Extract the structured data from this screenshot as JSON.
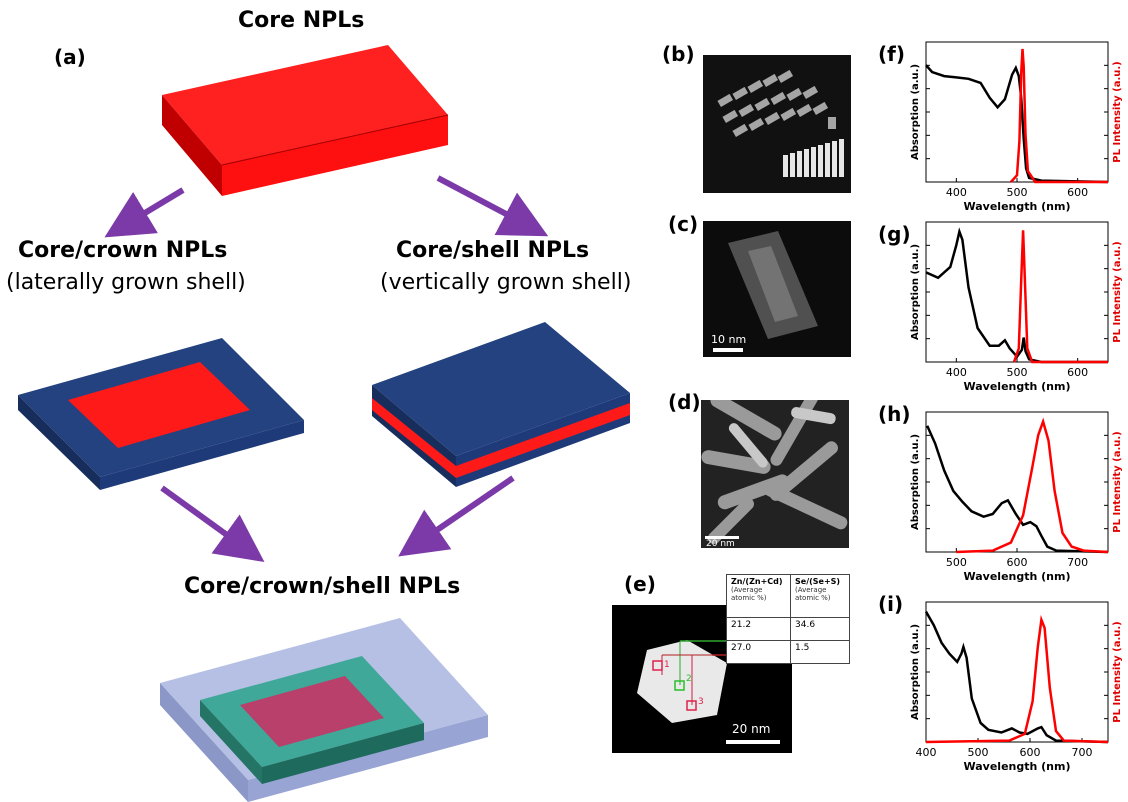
{
  "labels": {
    "a": "(a)",
    "b": "(b)",
    "c": "(c)",
    "d": "(d)",
    "e": "(e)",
    "f": "(f)",
    "g": "(g)",
    "h": "(h)",
    "i": "(i)"
  },
  "diagram": {
    "core_title": "Core NPLs",
    "crown_title": "Core/crown NPLs",
    "crown_sub": "(laterally grown shell)",
    "shell_title": "Core/shell NPLs",
    "shell_sub": "(vertically grown shell)",
    "ccs_title": "Core/crown/shell NPLs",
    "colors": {
      "core": "#ff1a1a",
      "shell": "#1f3a78",
      "arrow": "#7b3aa8"
    }
  },
  "tem": {
    "c_scale": "10 nm",
    "d_scale": "20 nm",
    "e_scale": "20 nm",
    "e_points": [
      "1",
      "2",
      "3"
    ]
  },
  "table": {
    "header": [
      {
        "title": "Zn/(Zn+Cd)",
        "sub": "(Average atomic %)"
      },
      {
        "title": "Se/(Se+S)",
        "sub": "(Average atomic %)"
      }
    ],
    "rows": [
      [
        "21.2",
        "34.6"
      ],
      [
        "27.0",
        "1.5"
      ]
    ]
  },
  "chart_data": [
    {
      "type": "line",
      "panel": "f",
      "xlabel": "Wavelength (nm)",
      "ylabel_left": "Absorption (a.u.)",
      "ylabel_right": "PL Intensity (a.u.)",
      "xlim": [
        350,
        650
      ],
      "xticks": [
        400,
        500,
        600
      ],
      "series": [
        {
          "color": "#000000",
          "points": [
            [
              350,
              0.86
            ],
            [
              360,
              0.81
            ],
            [
              380,
              0.78
            ],
            [
              400,
              0.77
            ],
            [
              420,
              0.76
            ],
            [
              440,
              0.73
            ],
            [
              455,
              0.62
            ],
            [
              468,
              0.55
            ],
            [
              480,
              0.61
            ],
            [
              492,
              0.79
            ],
            [
              498,
              0.84
            ],
            [
              503,
              0.78
            ],
            [
              507,
              0.62
            ],
            [
              511,
              0.32
            ],
            [
              515,
              0.1
            ],
            [
              520,
              0.03
            ],
            [
              540,
              0.01
            ],
            [
              650,
              0.0
            ]
          ]
        },
        {
          "color": "#ff0000",
          "points": [
            [
              490,
              0.0
            ],
            [
              500,
              0.05
            ],
            [
              504,
              0.3
            ],
            [
              507,
              0.8
            ],
            [
              509,
              0.98
            ],
            [
              511,
              0.85
            ],
            [
              514,
              0.35
            ],
            [
              518,
              0.08
            ],
            [
              530,
              0.0
            ],
            [
              650,
              0.0
            ]
          ]
        }
      ]
    },
    {
      "type": "line",
      "panel": "g",
      "xlabel": "Wavelength (nm)",
      "ylabel_left": "Absorption (a.u.)",
      "ylabel_right": "PL Intensity (a.u.)",
      "xlim": [
        350,
        650
      ],
      "xticks": [
        400,
        500,
        600
      ],
      "series": [
        {
          "color": "#000000",
          "points": [
            [
              350,
              0.66
            ],
            [
              370,
              0.62
            ],
            [
              390,
              0.7
            ],
            [
              400,
              0.86
            ],
            [
              405,
              0.96
            ],
            [
              410,
              0.9
            ],
            [
              420,
              0.55
            ],
            [
              435,
              0.25
            ],
            [
              455,
              0.12
            ],
            [
              470,
              0.12
            ],
            [
              480,
              0.16
            ],
            [
              488,
              0.1
            ],
            [
              500,
              0.04
            ],
            [
              508,
              0.09
            ],
            [
              511,
              0.18
            ],
            [
              514,
              0.08
            ],
            [
              520,
              0.02
            ],
            [
              540,
              0.0
            ],
            [
              650,
              0.0
            ]
          ]
        },
        {
          "color": "#ff0000",
          "points": [
            [
              495,
              0.0
            ],
            [
              503,
              0.1
            ],
            [
              507,
              0.6
            ],
            [
              510,
              0.97
            ],
            [
              513,
              0.6
            ],
            [
              517,
              0.1
            ],
            [
              525,
              0.0
            ],
            [
              650,
              0.0
            ]
          ]
        }
      ]
    },
    {
      "type": "line",
      "panel": "h",
      "xlabel": "Wavelength (nm)",
      "ylabel_left": "Absorption (a.u.)",
      "ylabel_right": "PL Intensity (a.u.)",
      "xlim": [
        450,
        750
      ],
      "xticks": [
        500,
        600,
        700
      ],
      "series": [
        {
          "color": "#000000",
          "points": [
            [
              452,
              0.93
            ],
            [
              465,
              0.8
            ],
            [
              480,
              0.6
            ],
            [
              495,
              0.45
            ],
            [
              510,
              0.37
            ],
            [
              525,
              0.3
            ],
            [
              545,
              0.26
            ],
            [
              560,
              0.28
            ],
            [
              575,
              0.36
            ],
            [
              585,
              0.38
            ],
            [
              598,
              0.28
            ],
            [
              610,
              0.2
            ],
            [
              622,
              0.22
            ],
            [
              632,
              0.19
            ],
            [
              640,
              0.12
            ],
            [
              650,
              0.04
            ],
            [
              665,
              0.01
            ],
            [
              750,
              0.0
            ]
          ]
        },
        {
          "color": "#ff0000",
          "points": [
            [
              500,
              0.0
            ],
            [
              560,
              0.01
            ],
            [
              590,
              0.07
            ],
            [
              610,
              0.27
            ],
            [
              625,
              0.62
            ],
            [
              635,
              0.86
            ],
            [
              643,
              0.96
            ],
            [
              652,
              0.82
            ],
            [
              662,
              0.45
            ],
            [
              675,
              0.14
            ],
            [
              690,
              0.04
            ],
            [
              710,
              0.01
            ],
            [
              750,
              0.0
            ]
          ]
        }
      ]
    },
    {
      "type": "line",
      "panel": "i",
      "xlabel": "Wavelength (nm)",
      "ylabel_left": "Absorption (a.u.)",
      "ylabel_right": "PL Intensity (a.u.)",
      "xlim": [
        400,
        750
      ],
      "xticks": [
        400,
        500,
        600,
        700
      ],
      "series": [
        {
          "color": "#000000",
          "points": [
            [
              400,
              0.96
            ],
            [
              415,
              0.86
            ],
            [
              430,
              0.73
            ],
            [
              445,
              0.65
            ],
            [
              460,
              0.59
            ],
            [
              468,
              0.65
            ],
            [
              472,
              0.7
            ],
            [
              478,
              0.62
            ],
            [
              488,
              0.32
            ],
            [
              505,
              0.14
            ],
            [
              520,
              0.09
            ],
            [
              545,
              0.07
            ],
            [
              565,
              0.1
            ],
            [
              580,
              0.07
            ],
            [
              595,
              0.06
            ],
            [
              615,
              0.1
            ],
            [
              622,
              0.11
            ],
            [
              632,
              0.05
            ],
            [
              650,
              0.01
            ],
            [
              750,
              0.0
            ]
          ]
        },
        {
          "color": "#ff0000",
          "points": [
            [
              400,
              0.0
            ],
            [
              560,
              0.01
            ],
            [
              590,
              0.06
            ],
            [
              605,
              0.3
            ],
            [
              615,
              0.7
            ],
            [
              622,
              0.9
            ],
            [
              628,
              0.84
            ],
            [
              638,
              0.4
            ],
            [
              650,
              0.08
            ],
            [
              665,
              0.01
            ],
            [
              750,
              0.0
            ]
          ]
        }
      ]
    }
  ]
}
